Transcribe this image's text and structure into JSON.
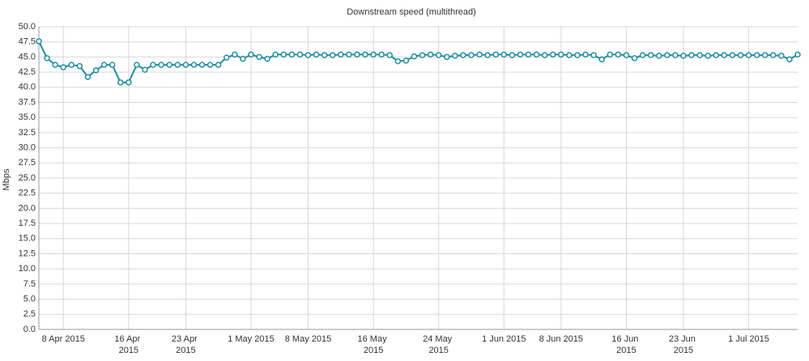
{
  "chart_data": {
    "type": "line",
    "title": "Downstream speed (multithread)",
    "y_label": "Mbps",
    "x": [
      "2015-04-05",
      "2015-04-06",
      "2015-04-07",
      "2015-04-08",
      "2015-04-09",
      "2015-04-10",
      "2015-04-11",
      "2015-04-12",
      "2015-04-13",
      "2015-04-14",
      "2015-04-15",
      "2015-04-16",
      "2015-04-17",
      "2015-04-18",
      "2015-04-19",
      "2015-04-20",
      "2015-04-21",
      "2015-04-22",
      "2015-04-23",
      "2015-04-24",
      "2015-04-25",
      "2015-04-26",
      "2015-04-27",
      "2015-04-28",
      "2015-04-29",
      "2015-04-30",
      "2015-05-01",
      "2015-05-02",
      "2015-05-03",
      "2015-05-04",
      "2015-05-05",
      "2015-05-06",
      "2015-05-07",
      "2015-05-08",
      "2015-05-09",
      "2015-05-10",
      "2015-05-11",
      "2015-05-12",
      "2015-05-13",
      "2015-05-14",
      "2015-05-15",
      "2015-05-16",
      "2015-05-17",
      "2015-05-18",
      "2015-05-19",
      "2015-05-20",
      "2015-05-21",
      "2015-05-22",
      "2015-05-23",
      "2015-05-24",
      "2015-05-25",
      "2015-05-26",
      "2015-05-27",
      "2015-05-28",
      "2015-05-29",
      "2015-05-30",
      "2015-05-31",
      "2015-06-01",
      "2015-06-02",
      "2015-06-03",
      "2015-06-04",
      "2015-06-05",
      "2015-06-06",
      "2015-06-07",
      "2015-06-08",
      "2015-06-09",
      "2015-06-10",
      "2015-06-11",
      "2015-06-12",
      "2015-06-13",
      "2015-06-14",
      "2015-06-15",
      "2015-06-16",
      "2015-06-17",
      "2015-06-18",
      "2015-06-19",
      "2015-06-20",
      "2015-06-21",
      "2015-06-22",
      "2015-06-23",
      "2015-06-24",
      "2015-06-25",
      "2015-06-26",
      "2015-06-27",
      "2015-06-28",
      "2015-06-29",
      "2015-06-30",
      "2015-07-01",
      "2015-07-02",
      "2015-07-03",
      "2015-07-04",
      "2015-07-05",
      "2015-07-06",
      "2015-07-07"
    ],
    "series": [
      {
        "name": "Downstream speed",
        "color": "#1f8fa0",
        "values": [
          47.6,
          44.8,
          43.7,
          43.3,
          43.7,
          43.5,
          41.7,
          42.8,
          43.7,
          43.7,
          40.8,
          40.8,
          43.7,
          42.9,
          43.7,
          43.7,
          43.7,
          43.7,
          43.7,
          43.7,
          43.7,
          43.7,
          43.7,
          44.9,
          45.4,
          44.7,
          45.4,
          45.0,
          44.7,
          45.4,
          45.4,
          45.4,
          45.4,
          45.3,
          45.4,
          45.3,
          45.3,
          45.4,
          45.4,
          45.4,
          45.4,
          45.4,
          45.4,
          45.3,
          44.3,
          44.4,
          45.1,
          45.3,
          45.4,
          45.3,
          45.0,
          45.2,
          45.3,
          45.3,
          45.4,
          45.3,
          45.4,
          45.4,
          45.3,
          45.4,
          45.4,
          45.4,
          45.3,
          45.4,
          45.4,
          45.3,
          45.3,
          45.4,
          45.3,
          44.6,
          45.4,
          45.4,
          45.3,
          44.8,
          45.3,
          45.3,
          45.2,
          45.3,
          45.3,
          45.2,
          45.3,
          45.3,
          45.2,
          45.3,
          45.3,
          45.3,
          45.3,
          45.3,
          45.3,
          45.3,
          45.3,
          45.2,
          44.6,
          45.4
        ]
      }
    ],
    "xlim": [
      "2015-04-05",
      "2015-07-07"
    ],
    "xticks": [
      {
        "value": "2015-04-08",
        "label": "8 Apr 2015"
      },
      {
        "value": "2015-04-16",
        "label": "16 Apr 2015"
      },
      {
        "value": "2015-04-23",
        "label": "23 Apr 2015"
      },
      {
        "value": "2015-05-01",
        "label": "1 May 2015"
      },
      {
        "value": "2015-05-08",
        "label": "8 May 2015"
      },
      {
        "value": "2015-05-16",
        "label": "16 May 2015"
      },
      {
        "value": "2015-05-24",
        "label": "24 May 2015"
      },
      {
        "value": "2015-06-01",
        "label": "1 Jun 2015"
      },
      {
        "value": "2015-06-08",
        "label": "8 Jun 2015"
      },
      {
        "value": "2015-06-16",
        "label": "16 Jun 2015"
      },
      {
        "value": "2015-06-23",
        "label": "23 Jun 2015"
      },
      {
        "value": "2015-07-01",
        "label": "1 Jul 2015"
      }
    ],
    "ylim": [
      0,
      50
    ],
    "yticks": [
      {
        "value": 0,
        "label": "0.0"
      },
      2.5,
      {
        "value": 5,
        "label": "5.0"
      },
      7.5,
      {
        "value": 10,
        "label": "10.0"
      },
      12.5,
      {
        "value": 15,
        "label": "15.0"
      },
      17.5,
      {
        "value": 20,
        "label": "20.0"
      },
      22.5,
      {
        "value": 25,
        "label": "25.0"
      },
      27.5,
      {
        "value": 30,
        "label": "30.0"
      },
      32.5,
      {
        "value": 35,
        "label": "35.0"
      },
      37.5,
      {
        "value": 40,
        "label": "40.0"
      },
      42.5,
      {
        "value": 45,
        "label": "45.0"
      },
      47.5,
      {
        "value": 50,
        "label": "50.0"
      }
    ],
    "grid": true
  }
}
